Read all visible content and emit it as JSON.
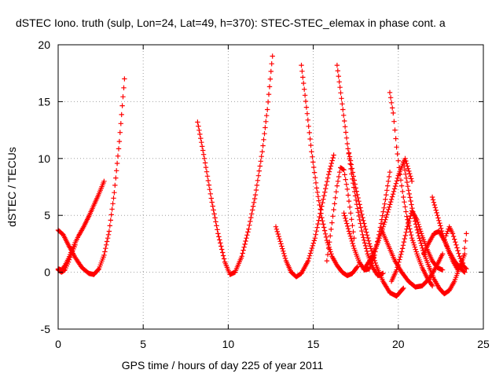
{
  "chart_data": {
    "type": "scatter",
    "title": "dSTEC Iono. truth (sulp, Lon=24, Lat=49, h=370): STEC-STEC_elemax in phase cont. a",
    "xlabel": "GPS time / hours of day 225 of year 2011",
    "ylabel": "dSTEC  / TECUs",
    "xlim": [
      0,
      25
    ],
    "ylim": [
      -5,
      20
    ],
    "xticks": [
      0,
      5,
      10,
      15,
      20,
      25
    ],
    "yticks": [
      -5,
      0,
      5,
      10,
      15,
      20
    ],
    "xtick_labels": [
      "0",
      "5",
      "10",
      "15",
      "20",
      "25"
    ],
    "ytick_labels": [
      "-5",
      "0",
      "5",
      "10",
      "15",
      "20"
    ],
    "grid": true,
    "legend": "none",
    "marker": "plus",
    "color": "#ff0000",
    "series": [
      {
        "x": [
          0.0,
          0.3,
          0.6,
          1.0,
          1.4,
          1.8,
          2.1,
          2.4,
          2.7,
          3.0,
          3.3,
          3.6,
          3.9
        ],
        "y": [
          3.7,
          3.3,
          2.4,
          1.3,
          0.4,
          -0.1,
          -0.2,
          0.3,
          1.5,
          3.6,
          7.0,
          11.5,
          17.0
        ]
      },
      {
        "x": [
          0.0,
          0.2,
          0.4,
          0.6,
          0.8,
          1.0,
          1.2,
          1.5,
          1.8,
          2.1,
          2.4,
          2.7
        ],
        "y": [
          0.3,
          0.2,
          0.6,
          1.2,
          1.9,
          2.6,
          3.2,
          4.0,
          4.9,
          5.9,
          6.9,
          8.0
        ]
      },
      {
        "x": [
          0.0,
          0.2,
          0.4,
          0.6,
          0.8,
          1.0
        ],
        "y": [
          0.2,
          0.0,
          0.2,
          0.9,
          1.7,
          2.4
        ]
      },
      {
        "x": [
          8.2,
          8.6,
          9.0,
          9.4,
          9.8,
          10.1,
          10.4,
          10.8,
          11.2,
          11.6,
          12.0,
          12.3,
          12.6
        ],
        "y": [
          13.2,
          10.0,
          6.5,
          3.4,
          0.9,
          -0.2,
          0.0,
          1.4,
          3.8,
          6.8,
          10.6,
          14.3,
          19.0
        ]
      },
      {
        "x": [
          12.8,
          13.1,
          13.4,
          13.7,
          14.0,
          14.3,
          14.7,
          15.1,
          15.5,
          15.9,
          16.2
        ],
        "y": [
          4.0,
          2.5,
          1.0,
          0.0,
          -0.4,
          -0.1,
          1.0,
          3.0,
          5.8,
          8.6,
          10.3
        ]
      },
      {
        "x": [
          14.3,
          14.6,
          14.9,
          15.2,
          15.5,
          15.8,
          16.1,
          16.4,
          16.7,
          17.0,
          17.3,
          17.6
        ],
        "y": [
          18.2,
          14.5,
          10.6,
          7.4,
          4.8,
          2.8,
          1.4,
          0.6,
          0.0,
          -0.3,
          -0.1,
          0.5
        ]
      },
      {
        "x": [
          16.4,
          16.7,
          17.0,
          17.3,
          17.6,
          17.9,
          18.2,
          18.5,
          18.8,
          19.1
        ],
        "y": [
          18.2,
          14.8,
          11.3,
          8.2,
          5.6,
          3.3,
          1.6,
          0.4,
          -0.3,
          -0.1
        ]
      },
      {
        "x": [
          15.8,
          16.0,
          16.2,
          16.4,
          16.6,
          16.8,
          17.0,
          17.2,
          17.4
        ],
        "y": [
          1.0,
          3.2,
          5.5,
          7.6,
          9.2,
          9.0,
          7.3,
          5.2,
          3.0
        ]
      },
      {
        "x": [
          17.1,
          17.5,
          17.9,
          18.3,
          18.7,
          19.1,
          19.5,
          19.9,
          20.3
        ],
        "y": [
          10.5,
          7.4,
          4.8,
          2.5,
          0.6,
          -0.8,
          -1.8,
          -2.1,
          -1.4
        ]
      },
      {
        "x": [
          16.8,
          17.1,
          17.4,
          17.7,
          18.0,
          18.3,
          18.6,
          18.9,
          19.2,
          19.5
        ],
        "y": [
          5.2,
          3.6,
          2.1,
          0.9,
          0.2,
          0.3,
          1.5,
          3.6,
          6.0,
          8.8
        ]
      },
      {
        "x": [
          19.5,
          19.7,
          19.9,
          20.1,
          20.3,
          20.5,
          20.8,
          21.1,
          21.4,
          21.7,
          22.0
        ],
        "y": [
          15.8,
          14.0,
          11.0,
          8.6,
          6.6,
          4.9,
          3.0,
          1.6,
          0.4,
          -0.5,
          -1.2
        ]
      },
      {
        "x": [
          18.0,
          18.4,
          18.8,
          19.2,
          19.6,
          20.0,
          20.4,
          20.8
        ],
        "y": [
          0.3,
          1.2,
          2.6,
          4.4,
          6.4,
          8.5,
          10.0,
          8.0
        ]
      },
      {
        "x": [
          19.6,
          19.9,
          20.2,
          20.5,
          20.8,
          21.1,
          21.4,
          21.7,
          22.0,
          22.3,
          22.6
        ],
        "y": [
          -0.8,
          0.2,
          1.8,
          3.8,
          5.4,
          4.6,
          3.2,
          2.0,
          1.0,
          0.4,
          0.2
        ]
      },
      {
        "x": [
          19.0,
          19.4,
          19.8,
          20.2,
          20.6,
          21.0,
          21.4,
          21.8,
          22.2,
          22.6
        ],
        "y": [
          3.8,
          2.4,
          1.0,
          0.0,
          -0.8,
          -1.3,
          -1.2,
          -0.6,
          0.4,
          1.6
        ]
      },
      {
        "x": [
          20.3,
          20.6,
          20.9,
          21.2,
          21.5,
          21.8,
          22.1,
          22.4,
          22.7,
          23.0,
          23.3,
          23.6,
          23.9
        ],
        "y": [
          9.7,
          7.2,
          5.0,
          3.2,
          1.7,
          0.5,
          -0.6,
          -1.4,
          -1.9,
          -1.6,
          -0.8,
          0.4,
          1.6
        ]
      },
      {
        "x": [
          22.0,
          22.3,
          22.6,
          22.9,
          23.2,
          23.5,
          23.8,
          24.0
        ],
        "y": [
          6.6,
          5.0,
          3.4,
          2.1,
          1.0,
          0.2,
          0.8,
          3.4
        ]
      },
      {
        "x": [
          21.5,
          21.8,
          22.1,
          22.4,
          22.7,
          23.0,
          23.3,
          23.6,
          23.9
        ],
        "y": [
          1.6,
          2.6,
          3.4,
          3.6,
          2.8,
          1.8,
          1.0,
          0.4,
          0.0
        ]
      },
      {
        "x": [
          22.8,
          23.0,
          23.2,
          23.4,
          23.6,
          23.8,
          24.0
        ],
        "y": [
          3.2,
          4.0,
          3.4,
          2.4,
          1.4,
          0.6,
          0.3
        ]
      }
    ]
  }
}
